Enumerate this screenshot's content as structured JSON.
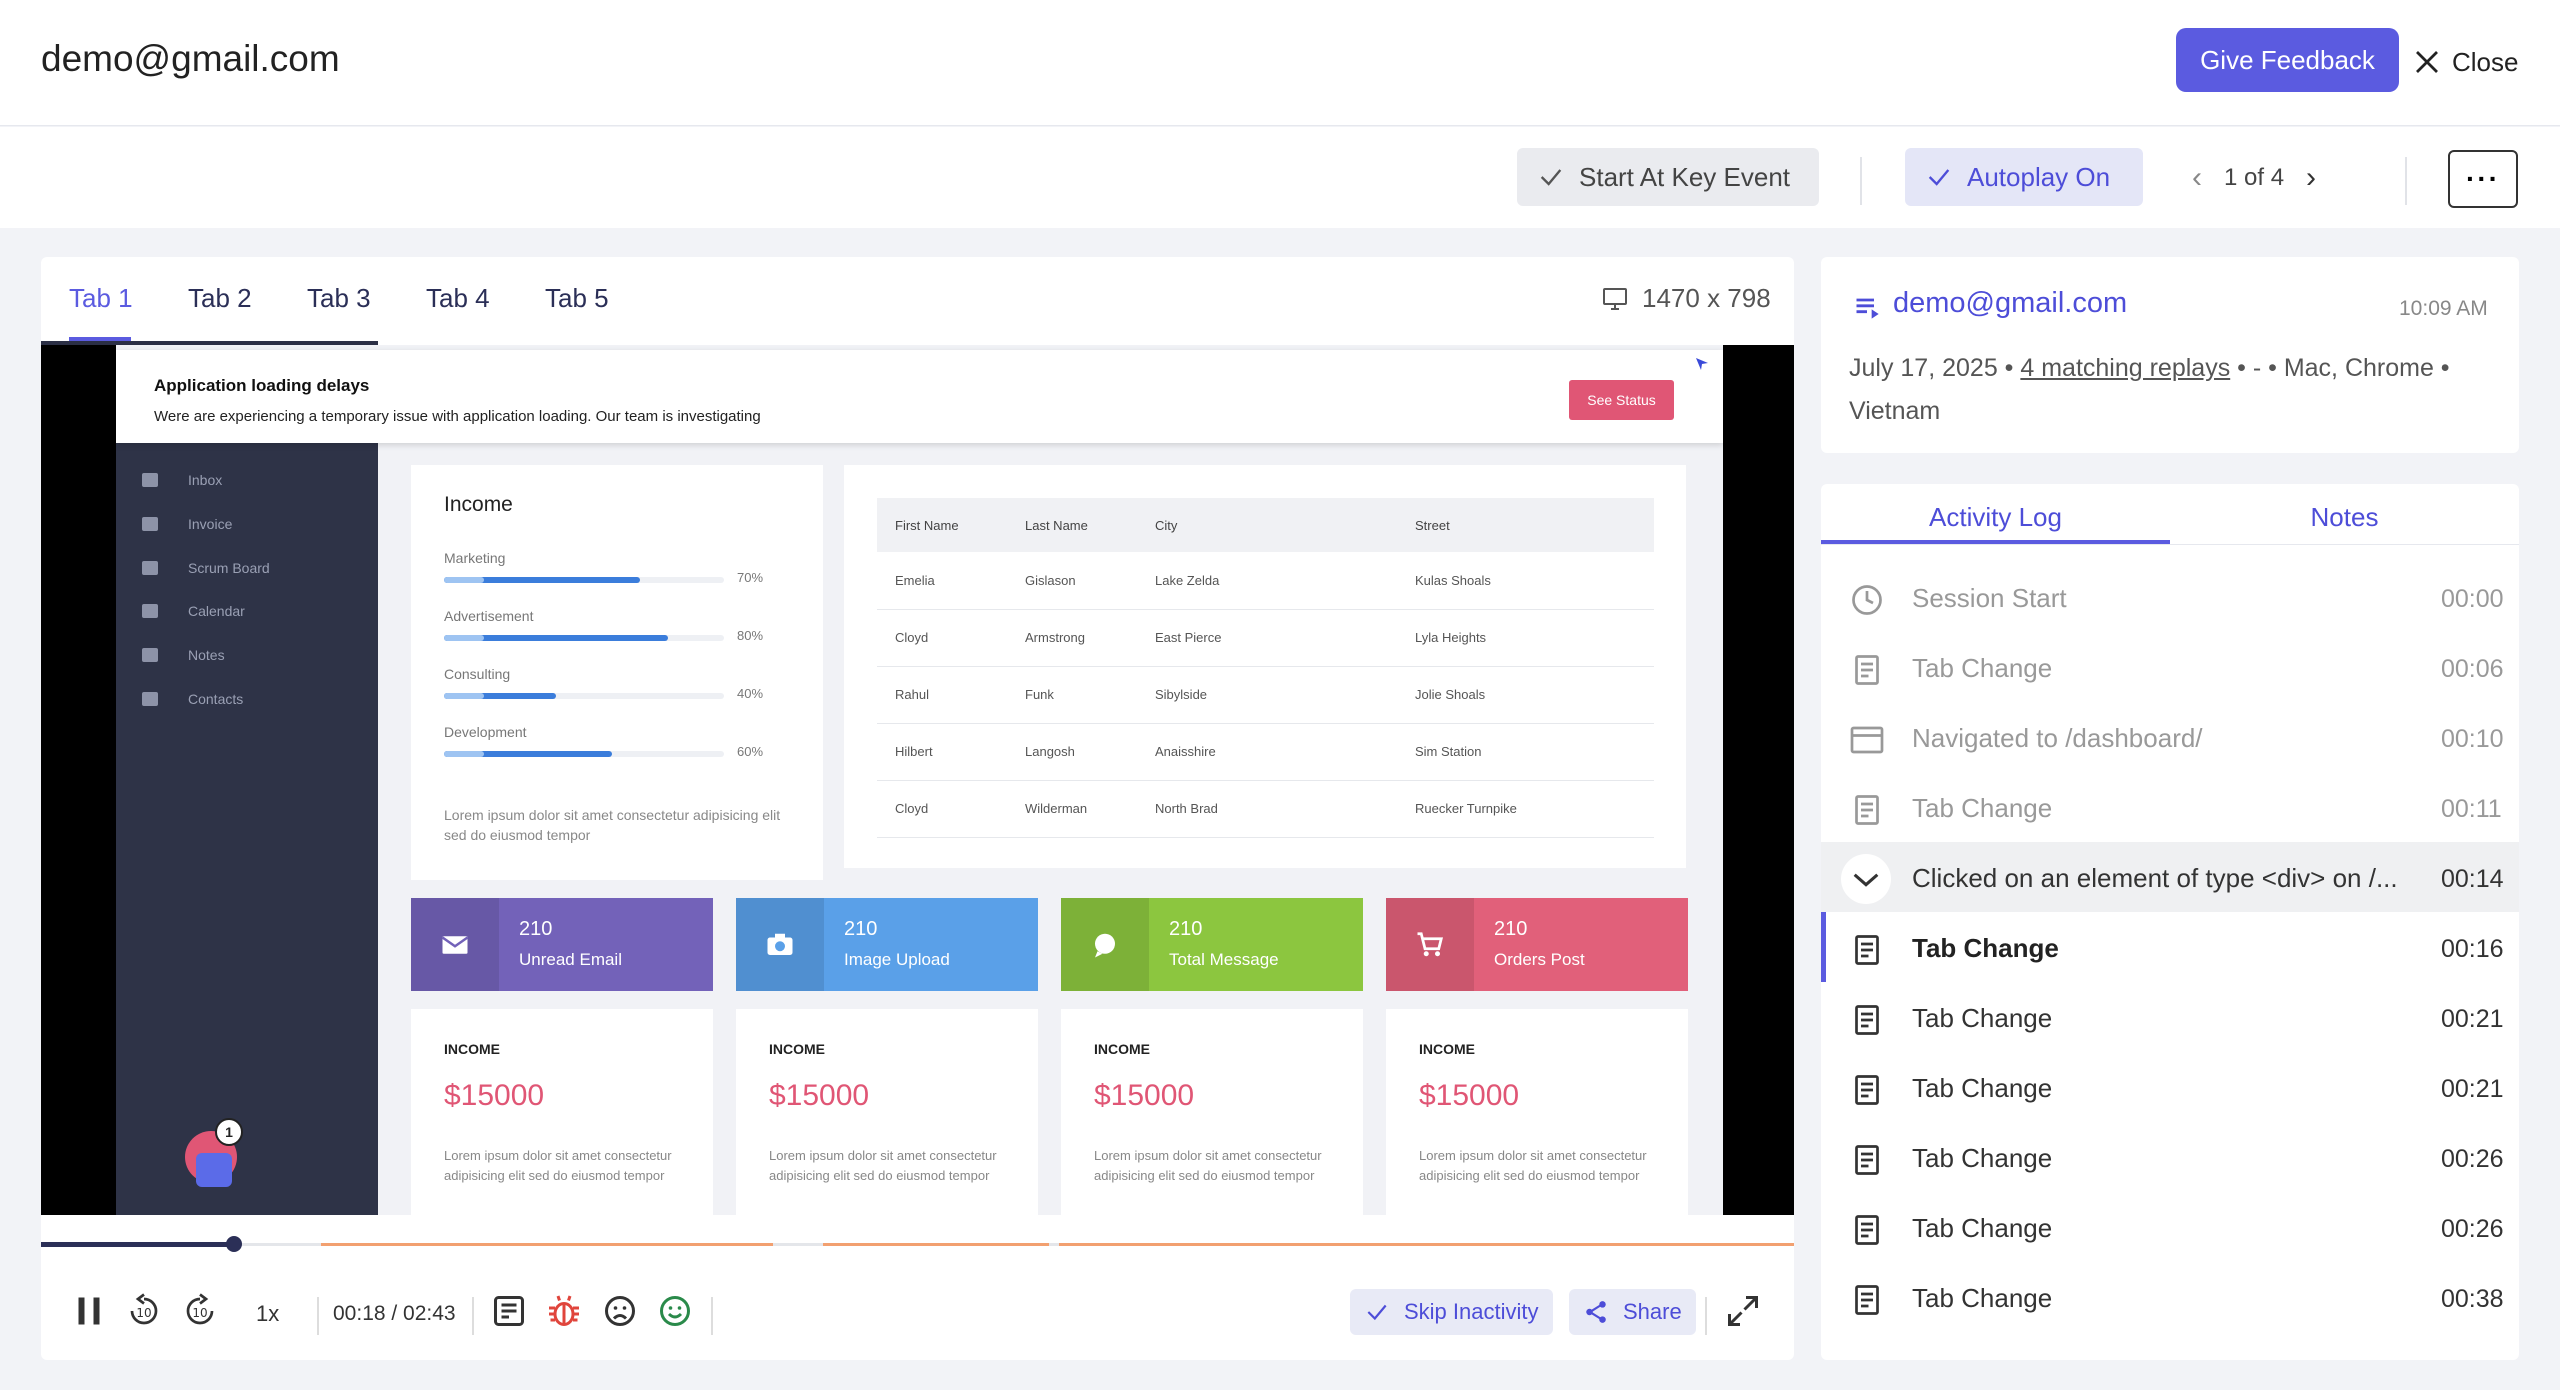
{
  "header": {
    "title": "demo@gmail.com",
    "feedback_label": "Give Feedback",
    "close_label": "Close"
  },
  "toolbar": {
    "key_event_label": "Start At Key Event",
    "autoplay_label": "Autoplay On",
    "pager": {
      "current_text": "1 of 4"
    },
    "more_label": "···"
  },
  "player": {
    "tabs": [
      "Tab 1",
      "Tab 2",
      "Tab 3",
      "Tab 4",
      "Tab 5"
    ],
    "active_tab": 0,
    "dimensions": "1470 x 798",
    "speed": "1x",
    "time": "00:18 / 02:43",
    "skip_label": "Skip Inactivity",
    "share_label": "Share",
    "playback_progress_pct": 11
  },
  "screen": {
    "banner": {
      "title": "Application loading delays",
      "message": "Were are experiencing a temporary issue with application loading. Our team is investigating",
      "button": "See Status"
    },
    "sidebar": [
      "Inbox",
      "Invoice",
      "Scrum Board",
      "Calendar",
      "Notes",
      "Contacts"
    ],
    "chat_badge": "1",
    "income": {
      "title": "Income",
      "items": [
        {
          "label": "Marketing",
          "pct": "70%",
          "value": 70
        },
        {
          "label": "Advertisement",
          "pct": "80%",
          "value": 80
        },
        {
          "label": "Consulting",
          "pct": "40%",
          "value": 40
        },
        {
          "label": "Development",
          "pct": "60%",
          "value": 60
        }
      ],
      "lorem": "Lorem ipsum dolor sit amet consectetur adipisicing elit sed do eiusmod tempor"
    },
    "table": {
      "headers": [
        "First Name",
        "Last Name",
        "City",
        "Street"
      ],
      "rows": [
        [
          "Emelia",
          "Gislason",
          "Lake Zelda",
          "Kulas Shoals"
        ],
        [
          "Cloyd",
          "Armstrong",
          "East Pierce",
          "Lyla Heights"
        ],
        [
          "Rahul",
          "Funk",
          "Sibylside",
          "Jolie Shoals"
        ],
        [
          "Hilbert",
          "Langosh",
          "Anaisshire",
          "Sim Station"
        ],
        [
          "Cloyd",
          "Wilderman",
          "North Brad",
          "Ruecker Turnpike"
        ]
      ]
    },
    "stats": [
      {
        "value": "210",
        "label": "Unread Email",
        "color": "#7362b9",
        "icon": "mail-icon"
      },
      {
        "value": "210",
        "label": "Image Upload",
        "color": "#5aa0e8",
        "icon": "camera-icon"
      },
      {
        "value": "210",
        "label": "Total Message",
        "color": "#8cc63f",
        "icon": "chat-icon"
      },
      {
        "value": "210",
        "label": "Orders Post",
        "color": "#e1607a",
        "icon": "cart-icon"
      }
    ],
    "incomes": [
      {
        "label": "INCOME",
        "value": "$15000",
        "text": "Lorem ipsum dolor sit amet consectetur adipisicing elit sed do eiusmod tempor"
      },
      {
        "label": "INCOME",
        "value": "$15000",
        "text": "Lorem ipsum dolor sit amet consectetur adipisicing elit sed do eiusmod tempor"
      },
      {
        "label": "INCOME",
        "value": "$15000",
        "text": "Lorem ipsum dolor sit amet consectetur adipisicing elit sed do eiusmod tempor"
      },
      {
        "label": "INCOME",
        "value": "$15000",
        "text": "Lorem ipsum dolor sit amet consectetur adipisicing elit sed do eiusmod tempor"
      }
    ]
  },
  "info": {
    "email": "demo@gmail.com",
    "time": "10:09 AM",
    "date": "July 17, 2025",
    "matching": "4 matching replays",
    "meta_rest": "• - • Mac, Chrome • Vietnam"
  },
  "activity": {
    "tabs": [
      "Activity Log",
      "Notes"
    ],
    "rows": [
      {
        "label": "Session Start",
        "time": "00:00",
        "icon": "clock-icon",
        "state": "dim"
      },
      {
        "label": "Tab Change",
        "time": "00:06",
        "icon": "document-icon",
        "state": "dim"
      },
      {
        "label": "Navigated to /dashboard/",
        "time": "00:10",
        "icon": "browser-icon",
        "state": "dim"
      },
      {
        "label": "Tab Change",
        "time": "00:11",
        "icon": "document-icon",
        "state": "dim"
      },
      {
        "label": "Clicked on an element of type <div> on /...",
        "time": "00:14",
        "icon": "chevron-down-icon",
        "state": "hl"
      },
      {
        "label": "Tab Change",
        "time": "00:16",
        "icon": "document-icon",
        "state": "cur"
      },
      {
        "label": "Tab Change",
        "time": "00:21",
        "icon": "document-icon",
        "state": ""
      },
      {
        "label": "Tab Change",
        "time": "00:21",
        "icon": "document-icon",
        "state": ""
      },
      {
        "label": "Tab Change",
        "time": "00:26",
        "icon": "document-icon",
        "state": ""
      },
      {
        "label": "Tab Change",
        "time": "00:26",
        "icon": "document-icon",
        "state": ""
      },
      {
        "label": "Tab Change",
        "time": "00:38",
        "icon": "document-icon",
        "state": ""
      }
    ]
  }
}
